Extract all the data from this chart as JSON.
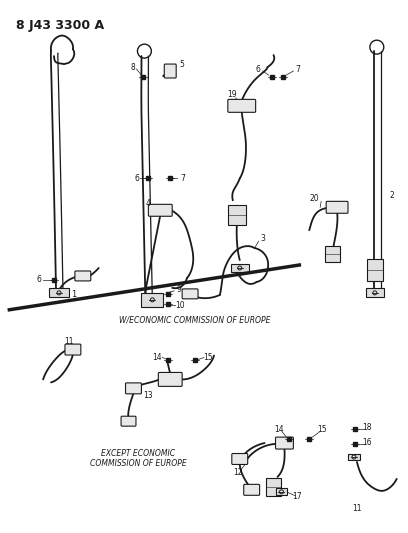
{
  "title": "8 J43 3300 A",
  "bg_color": "#ffffff",
  "lc": "#1a1a1a",
  "figsize": [
    4.08,
    5.33
  ],
  "dpi": 100,
  "label_w_europe": "W/ECONOMIC COMMISSION OF EUROPE",
  "label_except_europe": "EXCEPT ECONOMIC\nCOMMISSION OF EUROPE"
}
